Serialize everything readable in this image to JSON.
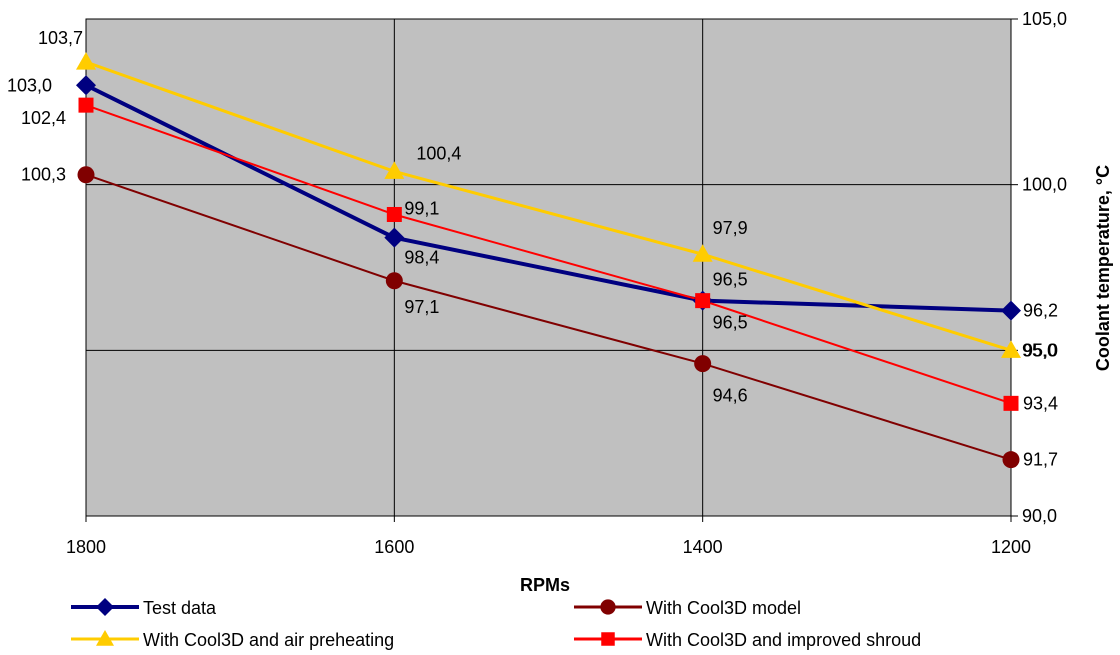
{
  "chart_data": {
    "type": "line",
    "xlabel": "RPMs",
    "ylabel": "Coolant temperature, °C",
    "x": [
      1800,
      1600,
      1400,
      1200
    ],
    "x_tick_labels": [
      "1800",
      "1600",
      "1400",
      "1200"
    ],
    "ylim": [
      90,
      105
    ],
    "y_ticks": [
      90,
      95,
      100,
      105
    ],
    "y_tick_labels": [
      "90,0",
      "95,0",
      "100,0",
      "105,0"
    ],
    "y_axis_side": "right",
    "grid": true,
    "plot_background": "#c0c0c0",
    "legend_position": "bottom",
    "series": [
      {
        "name": "Test data",
        "values": [
          103.0,
          98.4,
          96.5,
          96.2
        ],
        "labels": [
          "103,0",
          "98,4",
          "96,5",
          "96,2"
        ],
        "color": "#000080",
        "marker": "diamond",
        "line_width": 4
      },
      {
        "name": "With Cool3D model",
        "values": [
          100.3,
          97.1,
          94.6,
          91.7
        ],
        "labels": [
          "100,3",
          "97,1",
          "94,6",
          "91,7"
        ],
        "color": "#800000",
        "marker": "circle",
        "line_width": 2
      },
      {
        "name": "With Cool3D and air preheating",
        "values": [
          103.7,
          100.4,
          97.9,
          95.0
        ],
        "labels": [
          "103,7",
          "100,4",
          "97,9",
          "95,0"
        ],
        "color": "#ffcc00",
        "marker": "triangle",
        "line_width": 3
      },
      {
        "name": "With Cool3D and improved shroud",
        "values": [
          102.4,
          99.1,
          96.5,
          93.4
        ],
        "labels": [
          "102,4",
          "99,1",
          "96,5",
          "93,4"
        ],
        "color": "#ff0000",
        "marker": "square",
        "line_width": 2
      }
    ]
  }
}
